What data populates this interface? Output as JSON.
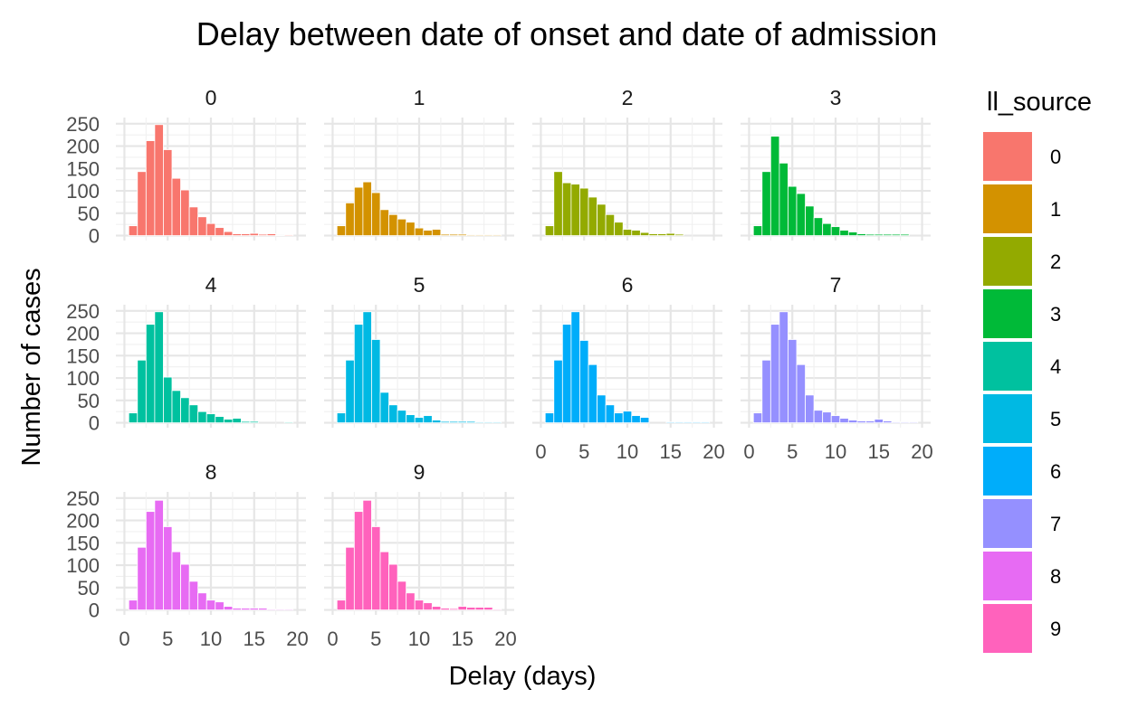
{
  "chart_data": {
    "type": "bar",
    "title": "Delay between date of onset and date of admission",
    "xlabel": "Delay (days)",
    "ylabel": "Number of cases",
    "xlim": [
      0,
      20
    ],
    "ylim": [
      0,
      250
    ],
    "x_ticks": [
      0,
      5,
      10,
      15,
      20
    ],
    "y_ticks": [
      0,
      50,
      100,
      150,
      200,
      250
    ],
    "grid": true,
    "legend_title": "ll_source",
    "legend_position": "right",
    "x": [
      1,
      2,
      3,
      4,
      5,
      6,
      7,
      8,
      9,
      10,
      11,
      12,
      13,
      14,
      15,
      16,
      17,
      18,
      19
    ],
    "series": [
      {
        "name": "0",
        "color": "#F8766D",
        "values": [
          22,
          143,
          212,
          248,
          192,
          128,
          102,
          64,
          42,
          27,
          18,
          9,
          4,
          4,
          5,
          3,
          4,
          1,
          2
        ]
      },
      {
        "name": "1",
        "color": "#D39200",
        "values": [
          22,
          73,
          108,
          120,
          96,
          58,
          47,
          37,
          30,
          17,
          12,
          14,
          3,
          3,
          3,
          2,
          2,
          2,
          2
        ]
      },
      {
        "name": "2",
        "color": "#93AA00",
        "values": [
          22,
          143,
          118,
          115,
          106,
          86,
          70,
          47,
          30,
          14,
          12,
          7,
          4,
          4,
          5,
          3,
          0,
          0,
          0
        ]
      },
      {
        "name": "3",
        "color": "#00BA38",
        "values": [
          22,
          143,
          222,
          162,
          110,
          94,
          66,
          40,
          27,
          20,
          12,
          8,
          4,
          3,
          3,
          3,
          3,
          3,
          0
        ]
      },
      {
        "name": "4",
        "color": "#00C19F",
        "values": [
          22,
          140,
          220,
          248,
          102,
          72,
          56,
          40,
          25,
          20,
          14,
          8,
          10,
          3,
          3,
          0,
          0,
          0,
          2
        ]
      },
      {
        "name": "5",
        "color": "#00B9E3",
        "values": [
          22,
          140,
          220,
          248,
          186,
          68,
          40,
          28,
          18,
          12,
          16,
          6,
          3,
          3,
          3,
          3,
          2,
          2,
          2
        ]
      },
      {
        "name": "6",
        "color": "#00ADFA",
        "values": [
          22,
          140,
          220,
          248,
          184,
          130,
          62,
          40,
          22,
          26,
          16,
          12,
          0,
          0,
          2,
          2,
          2,
          2,
          2
        ]
      },
      {
        "name": "7",
        "color": "#9590FF",
        "values": [
          22,
          140,
          220,
          248,
          186,
          130,
          62,
          28,
          24,
          16,
          10,
          6,
          4,
          4,
          8,
          4,
          2,
          2,
          2
        ]
      },
      {
        "name": "8",
        "color": "#E76BF3",
        "values": [
          22,
          140,
          220,
          245,
          186,
          130,
          102,
          64,
          38,
          22,
          18,
          8,
          4,
          4,
          4,
          4,
          2,
          2,
          2
        ]
      },
      {
        "name": "9",
        "color": "#FF62BC",
        "values": [
          22,
          140,
          220,
          245,
          186,
          130,
          102,
          64,
          38,
          22,
          16,
          8,
          4,
          3,
          8,
          6,
          6,
          6,
          2
        ]
      }
    ]
  }
}
